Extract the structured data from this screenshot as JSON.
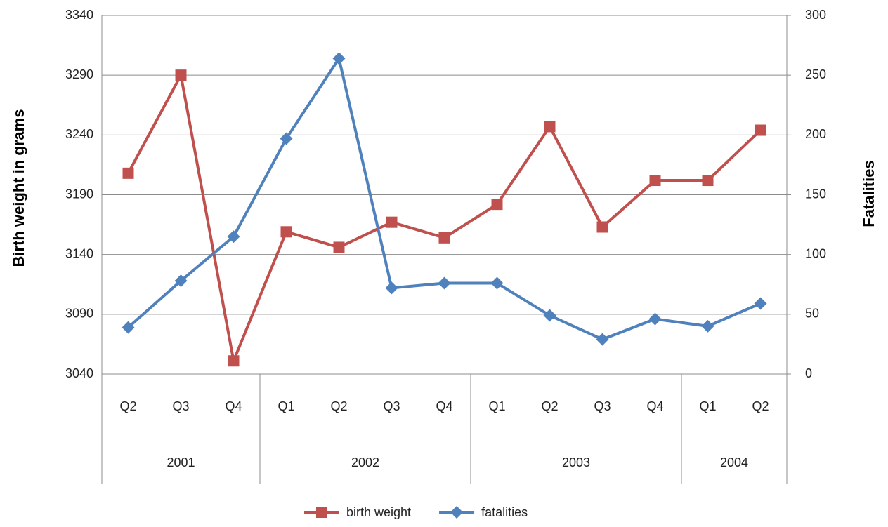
{
  "chart_data": {
    "type": "line",
    "categories": [
      {
        "group": "2001",
        "label": "Q2"
      },
      {
        "group": "2001",
        "label": "Q3"
      },
      {
        "group": "2001",
        "label": "Q4"
      },
      {
        "group": "2002",
        "label": "Q1"
      },
      {
        "group": "2002",
        "label": "Q2"
      },
      {
        "group": "2002",
        "label": "Q3"
      },
      {
        "group": "2002",
        "label": "Q4"
      },
      {
        "group": "2003",
        "label": "Q1"
      },
      {
        "group": "2003",
        "label": "Q2"
      },
      {
        "group": "2003",
        "label": "Q3"
      },
      {
        "group": "2003",
        "label": "Q4"
      },
      {
        "group": "2004",
        "label": "Q1"
      },
      {
        "group": "2004",
        "label": "Q2"
      }
    ],
    "series": [
      {
        "name": "birth weight",
        "color": "#c0504d",
        "marker": "square",
        "axis": "y",
        "values": [
          3208,
          3290,
          3051,
          3159,
          3146,
          3167,
          3154,
          3182,
          3247,
          3163,
          3202,
          3202,
          3244
        ]
      },
      {
        "name": "fatalities",
        "color": "#4f81bd",
        "marker": "diamond",
        "axis": "y2",
        "values": [
          39,
          78,
          115,
          197,
          264,
          72,
          76,
          76,
          49,
          29,
          46,
          40,
          59
        ]
      }
    ],
    "ylabel": "Birth weight in grams",
    "y2label": "Fatalities",
    "ylim": [
      3040,
      3340
    ],
    "yticks": [
      3040,
      3090,
      3140,
      3190,
      3240,
      3290,
      3340
    ],
    "y2lim": [
      0,
      300
    ],
    "y2ticks": [
      0,
      50,
      100,
      150,
      200,
      250,
      300
    ],
    "grid": true,
    "legend": "bottom"
  }
}
